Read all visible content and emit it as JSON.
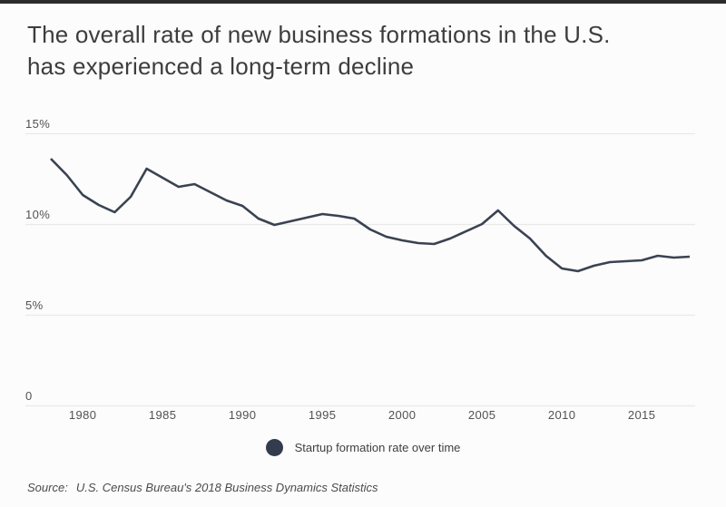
{
  "page": {
    "title_line1": "The overall rate of new business formations in the U.S.",
    "title_line2": "has experienced a long-term decline"
  },
  "legend": {
    "marker_color": "#333c4e",
    "label": "Startup formation rate over time"
  },
  "source": {
    "label": "Source:",
    "text": "U.S. Census Bureau's 2018 Business Dynamics Statistics"
  },
  "colors": {
    "top_bar": "#2c2c2c",
    "line": "#3a4252",
    "grid": "#e8e8e8",
    "axis_text": "#525252",
    "background": "#fcfcfc"
  },
  "chart_data": {
    "type": "line",
    "title": "The overall rate of new business formations in the U.S. has experienced a long-term decline",
    "series": [
      {
        "name": "Startup formation rate over time",
        "x": [
          1978,
          1979,
          1980,
          1981,
          1982,
          1983,
          1984,
          1985,
          1986,
          1987,
          1988,
          1989,
          1990,
          1991,
          1992,
          1993,
          1994,
          1995,
          1996,
          1997,
          1998,
          1999,
          2000,
          2001,
          2002,
          2003,
          2004,
          2005,
          2006,
          2007,
          2008,
          2009,
          2010,
          2011,
          2012,
          2013,
          2014,
          2015,
          2016,
          2017,
          2018
        ],
        "values": [
          13.6,
          12.7,
          11.6,
          11.05,
          10.65,
          11.5,
          13.05,
          12.55,
          12.05,
          12.2,
          11.75,
          11.3,
          11.0,
          10.3,
          9.95,
          10.15,
          10.35,
          10.55,
          10.45,
          10.3,
          9.7,
          9.3,
          9.1,
          8.95,
          8.9,
          9.2,
          9.6,
          10.0,
          10.75,
          9.9,
          9.2,
          8.25,
          7.55,
          7.4,
          7.7,
          7.9,
          7.95,
          8.0,
          8.25,
          8.15,
          8.2
        ]
      }
    ],
    "xlabel": "",
    "ylabel": "",
    "unit": "%",
    "xlim": [
      1978,
      2018
    ],
    "ylim": [
      0,
      15
    ],
    "x_ticks": [
      1980,
      1985,
      1990,
      1995,
      2000,
      2005,
      2010,
      2015
    ],
    "y_ticks": [
      {
        "value": 0,
        "label": "0"
      },
      {
        "value": 5,
        "label": "5%"
      },
      {
        "value": 10,
        "label": "10%"
      },
      {
        "value": 15,
        "label": "15%"
      }
    ],
    "grid": "horizontal",
    "legend_position": "bottom-center"
  }
}
